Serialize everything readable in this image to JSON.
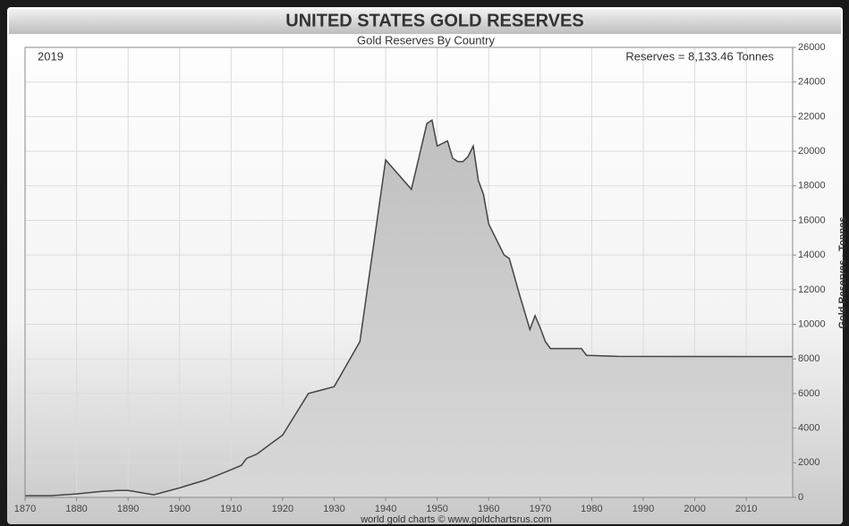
{
  "chart_data": {
    "type": "area",
    "title": "UNITED STATES GOLD RESERVES",
    "subtitle": "Gold Reserves By Country",
    "annotation_left": "2019",
    "annotation_right": "Reserves = 8,133.46 Tonnes",
    "y_label": "Gold Reserves - Tonnes",
    "footer": "world gold charts © www.goldchartsrus.com",
    "x": [
      1870,
      1875,
      1880,
      1885,
      1888,
      1890,
      1895,
      1900,
      1905,
      1910,
      1912,
      1913,
      1915,
      1920,
      1925,
      1930,
      1935,
      1940,
      1945,
      1948,
      1949,
      1950,
      1952,
      1953,
      1954,
      1955,
      1956,
      1957,
      1958,
      1959,
      1960,
      1963,
      1964,
      1966,
      1968,
      1969,
      1970,
      1971,
      1972,
      1977,
      1978,
      1979,
      1980,
      1985,
      2019
    ],
    "series": [
      {
        "name": "United States",
        "color": "#444444",
        "values": [
          100,
          100,
          200,
          350,
          400,
          400,
          150,
          550,
          1000,
          1600,
          1850,
          2250,
          2500,
          3600,
          6000,
          6400,
          9000,
          19500,
          17800,
          21600,
          21800,
          20300,
          20600,
          19600,
          19400,
          19400,
          19700,
          20300,
          18300,
          17500,
          15800,
          14000,
          13800,
          11700,
          9700,
          10500,
          9800,
          9000,
          8600,
          8600,
          8600,
          8200,
          8200,
          8150,
          8133.46
        ]
      }
    ],
    "xlim": [
      1870,
      2019
    ],
    "xticks": [
      1870,
      1880,
      1890,
      1900,
      1910,
      1920,
      1930,
      1940,
      1950,
      1960,
      1970,
      1980,
      1990,
      2000,
      2010
    ],
    "ylim": [
      0,
      26000
    ],
    "yticks": [
      0,
      2000,
      4000,
      6000,
      8000,
      10000,
      12000,
      14000,
      16000,
      18000,
      20000,
      22000,
      24000,
      26000
    ],
    "grid": true
  }
}
